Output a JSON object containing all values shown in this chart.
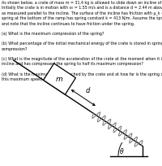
{
  "theta_deg": 33.0,
  "bg_color": "#ffffff",
  "crate_color": "#ffffff",
  "crate_edge_color": "#000000",
  "text_block": "As shown below, a crate of mass m = 31.4 kg is allowed to slide down an incline of θ = 33.0°.\nInitially the crate is in motion with v₀ = 1.55 m/s and is a distance d = 2.44 m above a large spring,\nas measured parallel to the incline. The surface of the incline has friction with μ_k = 0.220. The\nspring at the bottom of the ramp has spring constant k = 413 N/m. Assume the spring is massless\nand note that the incline continues to have friction under the spring.\n\n(a) What is the maximum compression of the spring?\n\n(b) What percentage of the initial mechanical energy of the crate is stored in spring at maximum\ncompression?\n\n(c) What is the magnitude of the acceleration of the crate at the moment when it is sliding down the\nincline and has compressed the spring to half its maximum compression?\n\n(d) What is the maximum speed reached by the crate and at how far is the spring compressed when\nthis maximum speed is reached?"
}
